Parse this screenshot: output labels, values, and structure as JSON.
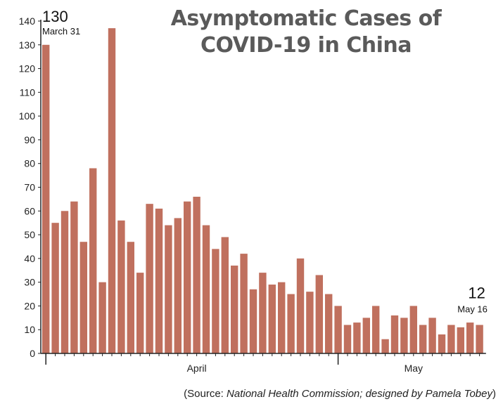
{
  "title_line1": "Asymptomatic Cases of",
  "title_line2": "COVID-19 in China",
  "source_prefix": "(Source: ",
  "source_italic": "National Health Commission; designed by Pamela Tobey",
  "source_suffix": ")",
  "colors": {
    "bar": "#c0705e",
    "axis": "#222222"
  },
  "chart_data": {
    "type": "bar",
    "title": "Asymptomatic Cases of COVID-19 in China",
    "xlabel": "",
    "ylabel": "",
    "ylim": [
      0,
      140
    ],
    "yticks": [
      0,
      10,
      20,
      30,
      40,
      50,
      60,
      70,
      80,
      90,
      100,
      110,
      120,
      130,
      140
    ],
    "x_month_labels": [
      {
        "label": "April",
        "bar_index": 16
      },
      {
        "label": "May",
        "bar_index": 39
      }
    ],
    "values": [
      130,
      55,
      60,
      64,
      47,
      78,
      30,
      137,
      56,
      47,
      34,
      63,
      61,
      54,
      57,
      64,
      66,
      54,
      44,
      49,
      37,
      42,
      27,
      34,
      29,
      30,
      25,
      40,
      26,
      33,
      25,
      20,
      12,
      13,
      15,
      20,
      6,
      16,
      15,
      20,
      12,
      15,
      8,
      12,
      11,
      13,
      12
    ],
    "annotations": [
      {
        "bar_index": 0,
        "value_label": "130",
        "date_label": "March 31"
      },
      {
        "bar_index": 46,
        "value_label": "12",
        "date_label": "May 16"
      }
    ]
  }
}
